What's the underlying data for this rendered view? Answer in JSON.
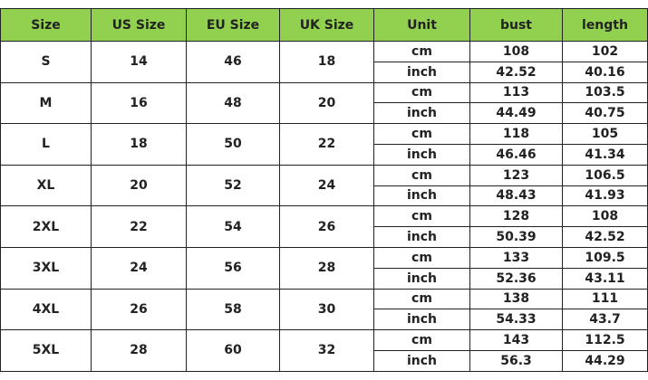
{
  "table": {
    "columns": [
      "Size",
      "US Size",
      "EU Size",
      "UK Size",
      "Unit",
      "bust",
      "length"
    ],
    "rows": [
      {
        "size": "S",
        "us": "14",
        "eu": "46",
        "uk": "18",
        "measures": [
          {
            "unit": "cm",
            "bust": "108",
            "length": "102"
          },
          {
            "unit": "inch",
            "bust": "42.52",
            "length": "40.16"
          }
        ]
      },
      {
        "size": "M",
        "us": "16",
        "eu": "48",
        "uk": "20",
        "measures": [
          {
            "unit": "cm",
            "bust": "113",
            "length": "103.5"
          },
          {
            "unit": "inch",
            "bust": "44.49",
            "length": "40.75"
          }
        ]
      },
      {
        "size": "L",
        "us": "18",
        "eu": "50",
        "uk": "22",
        "measures": [
          {
            "unit": "cm",
            "bust": "118",
            "length": "105"
          },
          {
            "unit": "inch",
            "bust": "46.46",
            "length": "41.34"
          }
        ]
      },
      {
        "size": "XL",
        "us": "20",
        "eu": "52",
        "uk": "24",
        "measures": [
          {
            "unit": "cm",
            "bust": "123",
            "length": "106.5"
          },
          {
            "unit": "inch",
            "bust": "48.43",
            "length": "41.93"
          }
        ]
      },
      {
        "size": "2XL",
        "us": "22",
        "eu": "54",
        "uk": "26",
        "measures": [
          {
            "unit": "cm",
            "bust": "128",
            "length": "108"
          },
          {
            "unit": "inch",
            "bust": "50.39",
            "length": "42.52"
          }
        ]
      },
      {
        "size": "3XL",
        "us": "24",
        "eu": "56",
        "uk": "28",
        "measures": [
          {
            "unit": "cm",
            "bust": "133",
            "length": "109.5"
          },
          {
            "unit": "inch",
            "bust": "52.36",
            "length": "43.11"
          }
        ]
      },
      {
        "size": "4XL",
        "us": "26",
        "eu": "58",
        "uk": "30",
        "measures": [
          {
            "unit": "cm",
            "bust": "138",
            "length": "111"
          },
          {
            "unit": "inch",
            "bust": "54.33",
            "length": "43.7"
          }
        ]
      },
      {
        "size": "5XL",
        "us": "28",
        "eu": "60",
        "uk": "32",
        "measures": [
          {
            "unit": "cm",
            "bust": "143",
            "length": "112.5"
          },
          {
            "unit": "inch",
            "bust": "56.3",
            "length": "44.29"
          }
        ]
      }
    ]
  }
}
